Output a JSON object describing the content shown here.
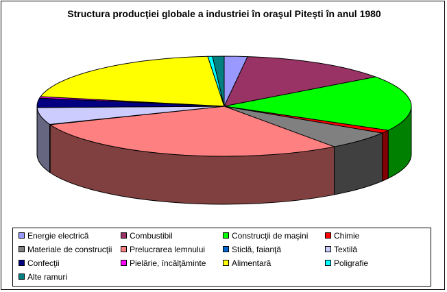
{
  "chart_data": {
    "type": "pie",
    "title": "Structura producţiei globale a industriei în oraşul Piteşti în anul 1980",
    "unit": "%",
    "legend_position": "bottom",
    "three_d": true,
    "categories": [
      "Energie electrică",
      "Combustibil",
      "Construcţii de maşini",
      "Chimie",
      "Materiale de construcţii",
      "Prelucrarea lemnului",
      "Sticlă, faianţă",
      "Textilă",
      "Confecţii",
      "Pielărie, încălţăminte",
      "Alimentară",
      "Poligrafie",
      "Alte ramuri"
    ],
    "values": [
      2.0,
      13.0,
      18.0,
      1.0,
      6.0,
      29.0,
      0.1,
      5.5,
      3.0,
      0.5,
      20.5,
      0.4,
      1.0
    ],
    "colors": [
      "#9999ff",
      "#993366",
      "#00ff00",
      "#ff0000",
      "#808080",
      "#ff8080",
      "#0066cc",
      "#ccccff",
      "#000080",
      "#ff00ff",
      "#ffff00",
      "#00ffff",
      "#008080"
    ]
  }
}
